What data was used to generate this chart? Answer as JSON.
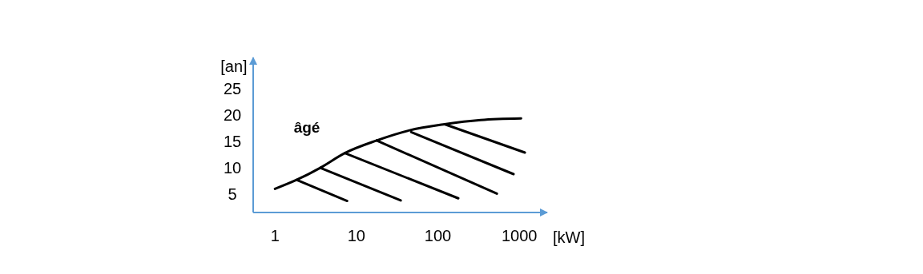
{
  "chart_data": {
    "type": "line",
    "xlabel": "[kW]",
    "ylabel": "[an]",
    "log": "x",
    "xlim": [
      0.54,
      2200
    ],
    "ylim": [
      1.5,
      31
    ],
    "xticks": [
      1,
      10,
      100,
      1000
    ],
    "yticks": [
      5,
      10,
      15,
      20,
      25
    ],
    "grid": false,
    "line_style": "solid",
    "annotations": [
      "âgé"
    ],
    "series": [
      {
        "color": "#000000",
        "x": [
          1,
          1.84,
          3.6,
          7.2,
          17.7,
          44,
          121,
          336,
          1050
        ],
        "values": [
          6,
          7.7,
          10,
          12.8,
          15.2,
          17.1,
          18.3,
          19.1,
          19.4
        ]
      },
      {
        "color": "#000000",
        "x": [
          1.84,
          7.7
        ],
        "values": [
          7.7,
          3.7
        ]
      },
      {
        "color": "#000000",
        "x": [
          3.6,
          35
        ],
        "values": [
          10,
          3.8
        ]
      },
      {
        "color": "#000000",
        "x": [
          7.2,
          178
        ],
        "values": [
          12.8,
          4.2
        ]
      },
      {
        "color": "#000000",
        "x": [
          17.7,
          530
        ],
        "values": [
          15.2,
          5.1
        ]
      },
      {
        "color": "#000000",
        "x": [
          47,
          850
        ],
        "values": [
          16.8,
          8.8
        ]
      },
      {
        "color": "#000000",
        "x": [
          121,
          1170
        ],
        "values": [
          18.3,
          12.9
        ]
      }
    ]
  }
}
